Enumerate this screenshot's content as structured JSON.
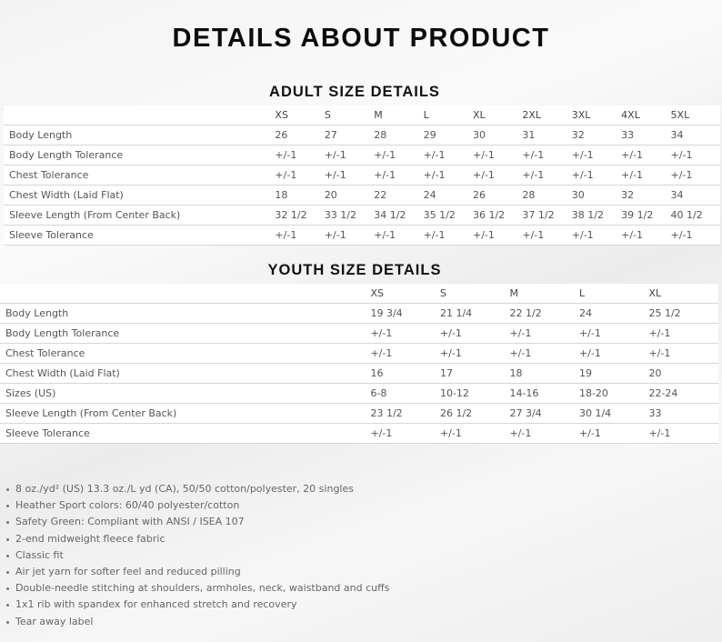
{
  "title": "DETAILS ABOUT PRODUCT",
  "adult": {
    "heading": "ADULT SIZE DETAILS",
    "sizes": [
      "XS",
      "S",
      "M",
      "L",
      "XL",
      "2XL",
      "3XL",
      "4XL",
      "5XL"
    ],
    "rows": [
      {
        "label": "Body Length",
        "values": [
          "26",
          "27",
          "28",
          "29",
          "30",
          "31",
          "32",
          "33",
          "34"
        ]
      },
      {
        "label": "Body Length Tolerance",
        "values": [
          "+/-1",
          "+/-1",
          "+/-1",
          "+/-1",
          "+/-1",
          "+/-1",
          "+/-1",
          "+/-1",
          "+/-1"
        ]
      },
      {
        "label": "Chest Tolerance",
        "values": [
          "+/-1",
          "+/-1",
          "+/-1",
          "+/-1",
          "+/-1",
          "+/-1",
          "+/-1",
          "+/-1",
          "+/-1"
        ]
      },
      {
        "label": "Chest Width (Laid Flat)",
        "values": [
          "18",
          "20",
          "22",
          "24",
          "26",
          "28",
          "30",
          "32",
          "34"
        ]
      },
      {
        "label": "Sleeve Length (From Center Back)",
        "values": [
          "32 1/2",
          "33 1/2",
          "34 1/2",
          "35 1/2",
          "36 1/2",
          "37 1/2",
          "38 1/2",
          "39 1/2",
          "40 1/2"
        ]
      },
      {
        "label": "Sleeve Tolerance",
        "values": [
          "+/-1",
          "+/-1",
          "+/-1",
          "+/-1",
          "+/-1",
          "+/-1",
          "+/-1",
          "+/-1",
          "+/-1"
        ]
      }
    ]
  },
  "youth": {
    "heading": "YOUTH SIZE DETAILS",
    "sizes": [
      "XS",
      "S",
      "M",
      "L",
      "XL"
    ],
    "rows": [
      {
        "label": "Body Length",
        "values": [
          "19 3/4",
          "21 1/4",
          "22 1/2",
          "24",
          "25 1/2"
        ]
      },
      {
        "label": "Body Length Tolerance",
        "values": [
          "+/-1",
          "+/-1",
          "+/-1",
          "+/-1",
          "+/-1"
        ]
      },
      {
        "label": "Chest Tolerance",
        "values": [
          "+/-1",
          "+/-1",
          "+/-1",
          "+/-1",
          "+/-1"
        ]
      },
      {
        "label": "Chest Width (Laid Flat)",
        "values": [
          "16",
          "17",
          "18",
          "19",
          "20"
        ]
      },
      {
        "label": "Sizes (US)",
        "values": [
          "6-8",
          "10-12",
          "14-16",
          "18-20",
          "22-24"
        ]
      },
      {
        "label": "Sleeve Length (From Center Back)",
        "values": [
          "23 1/2",
          "26 1/2",
          "27 3/4",
          "30 1/4",
          "33"
        ]
      },
      {
        "label": "Sleeve Tolerance",
        "values": [
          "+/-1",
          "+/-1",
          "+/-1",
          "+/-1",
          "+/-1"
        ]
      }
    ]
  },
  "features": [
    "8 oz./yd² (US) 13.3 oz./L yd (CA), 50/50 cotton/polyester, 20 singles",
    "Heather Sport colors: 60/40 polyester/cotton",
    "Safety Green: Compliant with ANSI / ISEA 107",
    "2-end midweight fleece fabric",
    "Classic fit",
    "Air jet yarn for softer feel and reduced pilling",
    "Double-needle stitching at shoulders, armholes, neck, waistband and cuffs",
    "1x1 rib with spandex for enhanced stretch and recovery",
    "Tear away label"
  ]
}
